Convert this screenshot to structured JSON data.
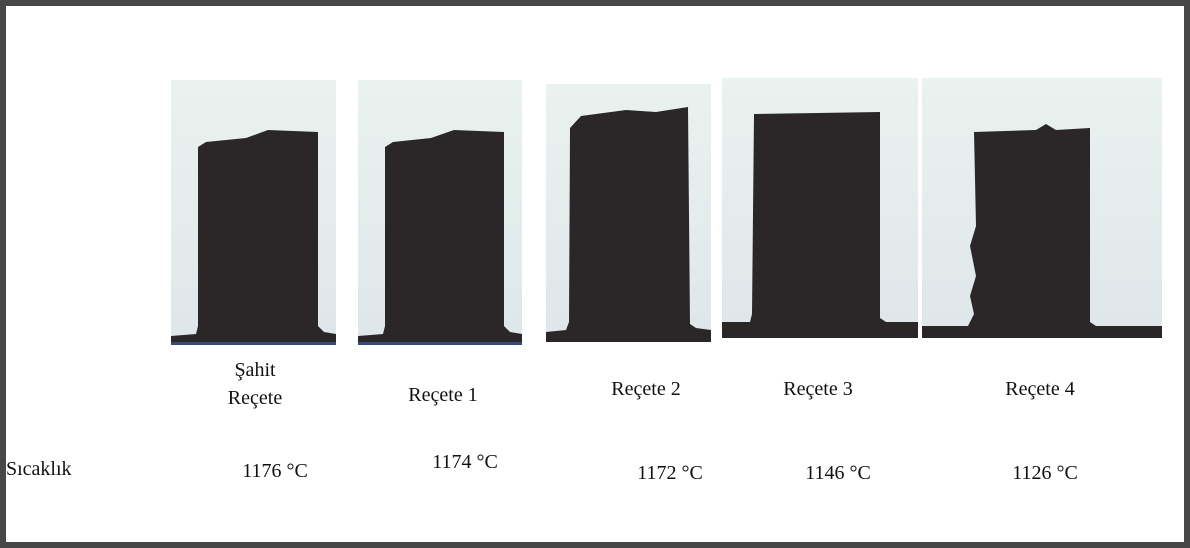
{
  "samples": [
    {
      "label": "Şahit Reçete",
      "temperature": "1176 °C"
    },
    {
      "label": "Reçete 1",
      "temperature": "1174 °C"
    },
    {
      "label": "Reçete 2",
      "temperature": "1172 °C"
    },
    {
      "label": "Reçete 3",
      "temperature": "1146 °C"
    },
    {
      "label": "Reçete 4",
      "temperature": "1126 °C"
    }
  ],
  "row_label": "Sıcaklık"
}
